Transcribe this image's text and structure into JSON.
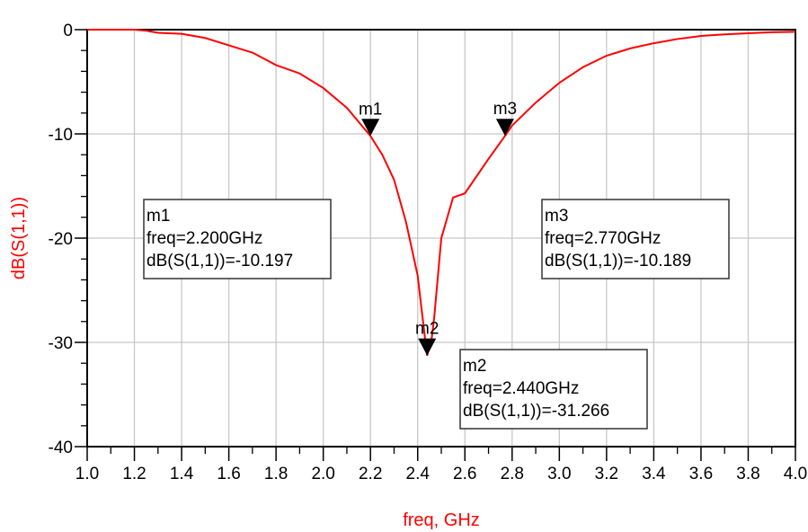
{
  "chart_data": {
    "type": "line",
    "title": "",
    "xlabel": "freq, GHz",
    "ylabel": "dB(S(1,1))",
    "xlim": [
      1.0,
      4.0
    ],
    "ylim": [
      -40,
      0
    ],
    "grid": true,
    "xticks": [
      "1.0",
      "1.2",
      "1.4",
      "1.6",
      "1.8",
      "2.0",
      "2.2",
      "2.4",
      "2.6",
      "2.8",
      "3.0",
      "3.2",
      "3.4",
      "3.6",
      "3.8",
      "4.0"
    ],
    "yticks": [
      "0",
      "-10",
      "-20",
      "-30",
      "-40"
    ],
    "series_color": "#ff0000",
    "series": [
      {
        "x": [
          1.0,
          1.1,
          1.2,
          1.25,
          1.3,
          1.4,
          1.5,
          1.6,
          1.7,
          1.8,
          1.9,
          2.0,
          2.1,
          2.2,
          2.25,
          2.3,
          2.35,
          2.4,
          2.42,
          2.44,
          2.46,
          2.47,
          2.5,
          2.55,
          2.6,
          2.7,
          2.77,
          2.8,
          2.9,
          3.0,
          3.1,
          3.2,
          3.3,
          3.4,
          3.5,
          3.6,
          3.7,
          3.8,
          3.9,
          4.0
        ],
        "y": [
          0,
          0,
          0,
          -0.1,
          -0.3,
          -0.4,
          -0.8,
          -1.5,
          -2.2,
          -3.4,
          -4.2,
          -5.6,
          -7.5,
          -10.2,
          -12,
          -14.4,
          -18.4,
          -23.6,
          -27.5,
          -31.27,
          -29.5,
          -27.6,
          -20,
          -16.1,
          -15.7,
          -12.4,
          -10.19,
          -9.2,
          -7,
          -5.1,
          -3.6,
          -2.5,
          -1.8,
          -1.3,
          -0.9,
          -0.6,
          -0.45,
          -0.35,
          -0.25,
          -0.2
        ]
      }
    ],
    "markers": [
      {
        "name": "m1",
        "freq": 2.2,
        "value": -10.197,
        "lines": [
          "m1",
          "freq=2.200GHz",
          "dB(S(1,1))=-10.197"
        ]
      },
      {
        "name": "m2",
        "freq": 2.44,
        "value": -31.266,
        "lines": [
          "m2",
          "freq=2.440GHz",
          "dB(S(1,1))=-31.266"
        ]
      },
      {
        "name": "m3",
        "freq": 2.77,
        "value": -10.189,
        "lines": [
          "m3",
          "freq=2.770GHz",
          "dB(S(1,1))=-10.189"
        ]
      }
    ]
  }
}
